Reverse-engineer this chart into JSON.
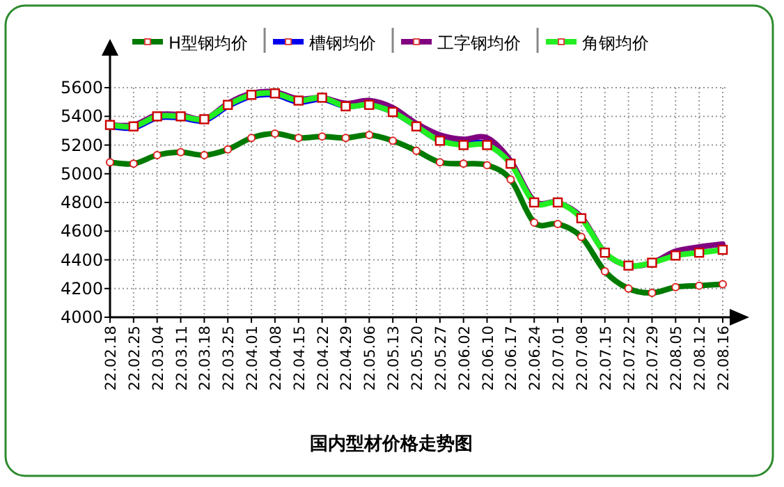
{
  "chart_data": {
    "type": "line",
    "title": "国内型材价格走势图",
    "categories": [
      "22.02.18",
      "22.02.25",
      "22.03.04",
      "22.03.11",
      "22.03.18",
      "22.03.25",
      "22.04.01",
      "22.04.08",
      "22.04.15",
      "22.04.22",
      "22.04.29",
      "22.05.06",
      "22.05.13",
      "22.05.20",
      "22.05.27",
      "22.06.02",
      "22.06.10",
      "22.06.17",
      "22.06.24",
      "22.07.01",
      "22.07.08",
      "22.07.15",
      "22.07.22",
      "22.07.29",
      "22.08.05",
      "22.08.12",
      "22.08.16"
    ],
    "series": [
      {
        "name": "H型钢均价",
        "color": "#007a00",
        "marker": "circle",
        "values": [
          5080,
          5070,
          5130,
          5150,
          5130,
          5170,
          5250,
          5280,
          5250,
          5260,
          5250,
          5270,
          5230,
          5160,
          5080,
          5070,
          5060,
          4960,
          4660,
          4650,
          4560,
          4320,
          4200,
          4170,
          4210,
          4220,
          4230
        ]
      },
      {
        "name": "槽钢均价",
        "color": "#0000ee",
        "marker": "none",
        "values": [
          5330,
          5320,
          5390,
          5390,
          5370,
          5470,
          5540,
          5550,
          5500,
          5520,
          5470,
          5480,
          5430,
          5330,
          5230,
          5210,
          5210,
          5080,
          null,
          null,
          null,
          null,
          null,
          null,
          null,
          null,
          null
        ]
      },
      {
        "name": "工字钢均价",
        "color": "#800080",
        "marker": "none",
        "values": [
          5340,
          5340,
          5410,
          5410,
          5380,
          5490,
          5560,
          5570,
          5520,
          5530,
          5490,
          5510,
          5460,
          5350,
          5270,
          5240,
          5250,
          5090,
          4810,
          4800,
          4700,
          4450,
          4360,
          4380,
          4460,
          4490,
          4510
        ]
      },
      {
        "name": "角钢均价",
        "color": "#22ee22",
        "marker": "square",
        "values": [
          5340,
          5330,
          5400,
          5400,
          5380,
          5480,
          5550,
          5560,
          5510,
          5530,
          5470,
          5480,
          5430,
          5330,
          5230,
          5200,
          5200,
          5070,
          4800,
          4800,
          4690,
          4450,
          4360,
          4380,
          4430,
          4450,
          4470
        ]
      }
    ],
    "ylim": [
      4000,
      5600
    ],
    "yticks": [
      4000,
      4200,
      4400,
      4600,
      4800,
      5000,
      5200,
      5400,
      5600
    ],
    "grid": true,
    "legend": "top",
    "line_style": "solid"
  }
}
